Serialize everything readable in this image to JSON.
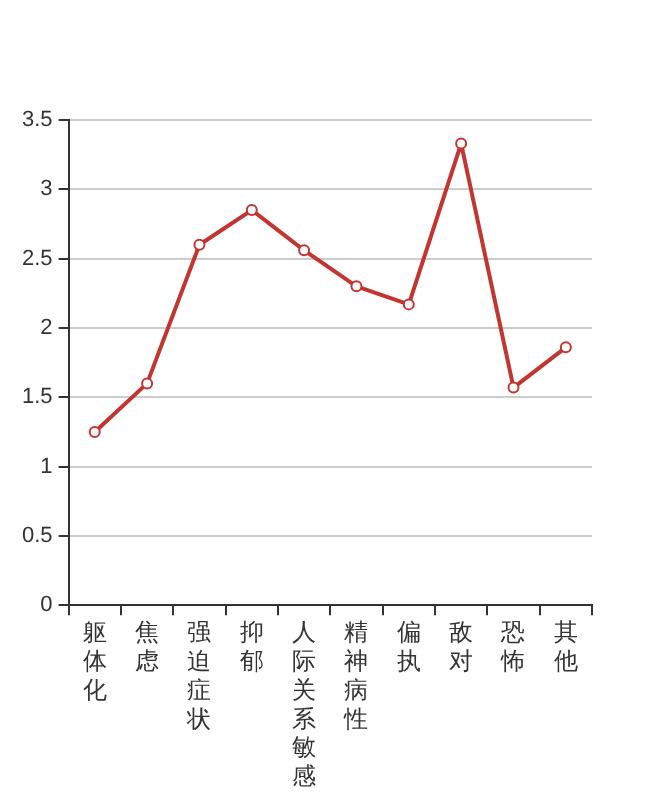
{
  "chart_data": {
    "type": "line",
    "categories": [
      "躯体化",
      "焦虑",
      "强迫症状",
      "抑郁",
      "人际关系敏感",
      "精神病性",
      "偏执",
      "敌对",
      "恐怖",
      "其他"
    ],
    "series": [
      {
        "color": "#c23531",
        "values": [
          1.25,
          1.6,
          2.6,
          2.85,
          2.56,
          2.3,
          2.17,
          3.33,
          1.57,
          1.86
        ]
      }
    ],
    "ylim": [
      0,
      3.5
    ],
    "yticks": [
      0,
      0.5,
      1,
      1.5,
      2,
      2.5,
      3,
      3.5
    ],
    "grid": "y",
    "marker": "circle",
    "line_style": "solid",
    "legend": false
  }
}
